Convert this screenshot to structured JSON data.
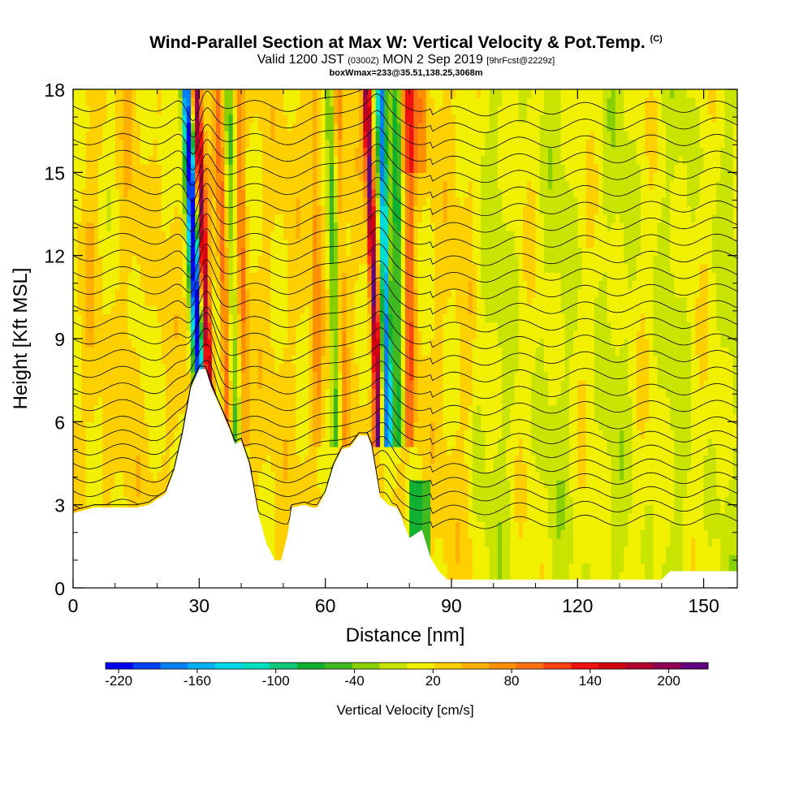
{
  "title": {
    "main": "Wind-Parallel Section at Max W: Vertical Velocity & Pot.Temp.",
    "copyright": "(C)",
    "valid_prefix": "Valid 1200 JST",
    "valid_utc": "(0300Z)",
    "valid_date": "MON 2 Sep 2019",
    "forecast": "[9hrFcst@2229z]",
    "box": "boxWmax=233@35.51,138.25,3068m"
  },
  "chart_data": {
    "type": "heatmap",
    "xlabel": "Distance [nm]",
    "ylabel": "Height [Kft MSL]",
    "xlim": [
      0,
      158
    ],
    "ylim": [
      0,
      18
    ],
    "x_ticks": [
      0,
      30,
      60,
      90,
      120,
      150
    ],
    "y_ticks": [
      0,
      3,
      6,
      9,
      12,
      15,
      18
    ],
    "colorbar": {
      "label": "Vertical Velocity [cm/s]",
      "range": [
        -230,
        230
      ],
      "tick_labels": [
        -220,
        -160,
        -100,
        -40,
        20,
        80,
        140,
        200
      ],
      "colors": [
        "#0000f0",
        "#0040f5",
        "#0080f5",
        "#00b0f0",
        "#00d8e8",
        "#00e0c0",
        "#10c878",
        "#10b030",
        "#40b820",
        "#88d000",
        "#c8e400",
        "#f0f000",
        "#ffd000",
        "#ffb000",
        "#ff9000",
        "#ff7010",
        "#ff4010",
        "#f01010",
        "#d00010",
        "#b00030",
        "#900050",
        "#600080"
      ]
    },
    "terrain_kft": [
      [
        0,
        2.7
      ],
      [
        5,
        2.9
      ],
      [
        10,
        2.9
      ],
      [
        15,
        2.9
      ],
      [
        18,
        3.0
      ],
      [
        22,
        3.4
      ],
      [
        24,
        4.2
      ],
      [
        26,
        5.5
      ],
      [
        28,
        7.2
      ],
      [
        30,
        7.9
      ],
      [
        31.5,
        7.9
      ],
      [
        33,
        7.2
      ],
      [
        35,
        6.5
      ],
      [
        37,
        5.8
      ],
      [
        38.5,
        5.2
      ],
      [
        40,
        5.3
      ],
      [
        42,
        4.4
      ],
      [
        44,
        2.7
      ],
      [
        46,
        1.6
      ],
      [
        48,
        1.0
      ],
      [
        49.5,
        1.0
      ],
      [
        51,
        1.9
      ],
      [
        52,
        2.9
      ],
      [
        55,
        3.0
      ],
      [
        57,
        2.9
      ],
      [
        58,
        2.9
      ],
      [
        60,
        3.4
      ],
      [
        62,
        4.4
      ],
      [
        64,
        5.0
      ],
      [
        66,
        5.1
      ],
      [
        68,
        5.5
      ],
      [
        70,
        5.5
      ],
      [
        71,
        5.1
      ],
      [
        72,
        4.2
      ],
      [
        73,
        3.3
      ],
      [
        75,
        3.0
      ],
      [
        77,
        2.9
      ],
      [
        78,
        2.6
      ],
      [
        80,
        1.8
      ],
      [
        83,
        2.1
      ],
      [
        85,
        1.1
      ],
      [
        87,
        0.6
      ],
      [
        89,
        0.3
      ],
      [
        92,
        0.3
      ],
      [
        97,
        0.3
      ],
      [
        102,
        0.3
      ],
      [
        110,
        0.3
      ],
      [
        125,
        0.3
      ],
      [
        140,
        0.3
      ],
      [
        142,
        0.6
      ],
      [
        148,
        0.6
      ],
      [
        158,
        0.6
      ]
    ],
    "theta_levels_kft": [
      2.5,
      3.0,
      3.5,
      4.0,
      4.5,
      5.0,
      5.5,
      6.0,
      6.6,
      7.2,
      7.8,
      8.4,
      9.0,
      9.6,
      10.2,
      10.8,
      11.4,
      12.0,
      12.6,
      13.2,
      13.8,
      14.4,
      15.0,
      15.6,
      16.2,
      16.8,
      17.4
    ],
    "updraft_bands": [
      {
        "name_hint": "downdraft",
        "x_top": 26,
        "x_bottom": 30.5,
        "value": -220
      },
      {
        "name_hint": "updraft",
        "x_top": 30.5,
        "x_bottom": 32.5,
        "value": 160
      },
      {
        "name_hint": "updraft",
        "x_top": 35.5,
        "x_bottom": 37.5,
        "value": 80
      },
      {
        "name_hint": "downdraft",
        "x_top": 74,
        "x_bottom": 76,
        "value": -160
      },
      {
        "name_hint": "updraft",
        "x_top": 73,
        "x_bottom": 72.5,
        "value": 160
      },
      {
        "name_hint": "downdraft",
        "x_top": 62,
        "x_bottom": 63,
        "value": -40
      }
    ]
  }
}
